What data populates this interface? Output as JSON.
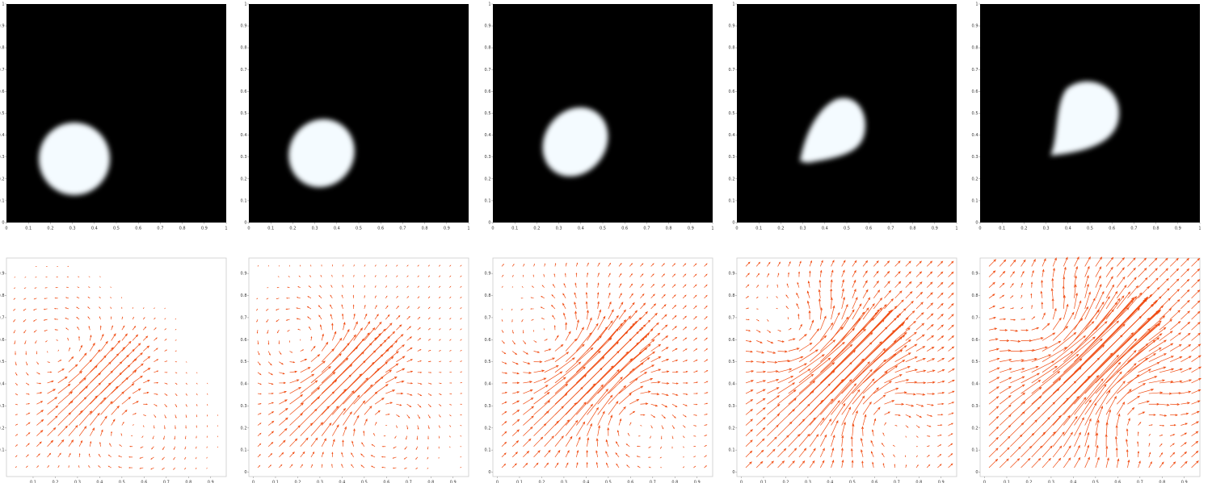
{
  "chart_data": [
    {
      "type": "image",
      "xlim": [
        0,
        1
      ],
      "ylim": [
        0,
        1
      ],
      "xticks": [
        0,
        0.1,
        0.2,
        0.3,
        0.4,
        0.5,
        0.6,
        0.7,
        0.8,
        0.9,
        1
      ],
      "yticks": [
        0,
        0.1,
        0.2,
        0.3,
        0.4,
        0.5,
        0.6,
        0.7,
        0.8,
        0.9,
        1
      ]
    },
    {
      "type": "image",
      "xlim": [
        0,
        1
      ],
      "ylim": [
        0,
        1
      ],
      "xticks": [
        0,
        0.1,
        0.2,
        0.3,
        0.4,
        0.5,
        0.6,
        0.7,
        0.8,
        0.9,
        1
      ],
      "yticks": [
        0,
        0.1,
        0.2,
        0.3,
        0.4,
        0.5,
        0.6,
        0.7,
        0.8,
        0.9,
        1
      ]
    },
    {
      "type": "image",
      "xlim": [
        0,
        1
      ],
      "ylim": [
        0,
        1
      ],
      "xticks": [
        0,
        0.1,
        0.2,
        0.3,
        0.4,
        0.5,
        0.6,
        0.7,
        0.8,
        0.9,
        1
      ],
      "yticks": [
        0,
        0.1,
        0.2,
        0.3,
        0.4,
        0.5,
        0.6,
        0.7,
        0.8,
        0.9,
        1
      ]
    },
    {
      "type": "image",
      "xlim": [
        0,
        1
      ],
      "ylim": [
        0,
        1
      ],
      "xticks": [
        0,
        0.1,
        0.2,
        0.3,
        0.4,
        0.5,
        0.6,
        0.7,
        0.8,
        0.9,
        1
      ],
      "yticks": [
        0,
        0.1,
        0.2,
        0.3,
        0.4,
        0.5,
        0.6,
        0.7,
        0.8,
        0.9,
        1
      ]
    },
    {
      "type": "image",
      "xlim": [
        0,
        1
      ],
      "ylim": [
        0,
        1
      ],
      "xticks": [
        0,
        0.1,
        0.2,
        0.3,
        0.4,
        0.5,
        0.6,
        0.7,
        0.8,
        0.9,
        1
      ],
      "yticks": [
        0,
        0.1,
        0.2,
        0.3,
        0.4,
        0.5,
        0.6,
        0.7,
        0.8,
        0.9,
        1
      ]
    },
    {
      "type": "quiver",
      "xlim": [
        -0.02,
        0.97
      ],
      "ylim": [
        -0.02,
        0.97
      ],
      "xticks": [
        0.1,
        0.2,
        0.3,
        0.4,
        0.5,
        0.6,
        0.7,
        0.8,
        0.9
      ],
      "yticks": [
        0.1,
        0.2,
        0.3,
        0.4,
        0.5,
        0.6,
        0.7,
        0.8,
        0.9
      ]
    },
    {
      "type": "quiver",
      "xlim": [
        -0.02,
        0.97
      ],
      "ylim": [
        -0.02,
        0.97
      ],
      "xticks": [
        0,
        0.1,
        0.2,
        0.3,
        0.4,
        0.5,
        0.6,
        0.7,
        0.8,
        0.9
      ],
      "yticks": [
        0,
        0.1,
        0.2,
        0.3,
        0.4,
        0.5,
        0.6,
        0.7,
        0.8,
        0.9
      ]
    },
    {
      "type": "quiver",
      "xlim": [
        -0.02,
        0.97
      ],
      "ylim": [
        -0.02,
        0.97
      ],
      "xticks": [
        0,
        0.1,
        0.2,
        0.3,
        0.4,
        0.5,
        0.6,
        0.7,
        0.8,
        0.9
      ],
      "yticks": [
        0,
        0.1,
        0.2,
        0.3,
        0.4,
        0.5,
        0.6,
        0.7,
        0.8,
        0.9
      ]
    },
    {
      "type": "quiver",
      "xlim": [
        -0.02,
        0.97
      ],
      "ylim": [
        -0.02,
        0.97
      ],
      "xticks": [
        0,
        0.1,
        0.2,
        0.3,
        0.4,
        0.5,
        0.6,
        0.7,
        0.8,
        0.9
      ],
      "yticks": [
        0,
        0.1,
        0.2,
        0.3,
        0.4,
        0.5,
        0.6,
        0.7,
        0.8,
        0.9
      ]
    },
    {
      "type": "quiver",
      "xlim": [
        -0.02,
        0.97
      ],
      "ylim": [
        -0.02,
        0.97
      ],
      "xticks": [
        0,
        0.1,
        0.2,
        0.3,
        0.4,
        0.5,
        0.6,
        0.7,
        0.8,
        0.9
      ],
      "yticks": [
        0,
        0.1,
        0.2,
        0.3,
        0.4,
        0.5,
        0.6,
        0.7,
        0.8,
        0.9
      ]
    }
  ]
}
